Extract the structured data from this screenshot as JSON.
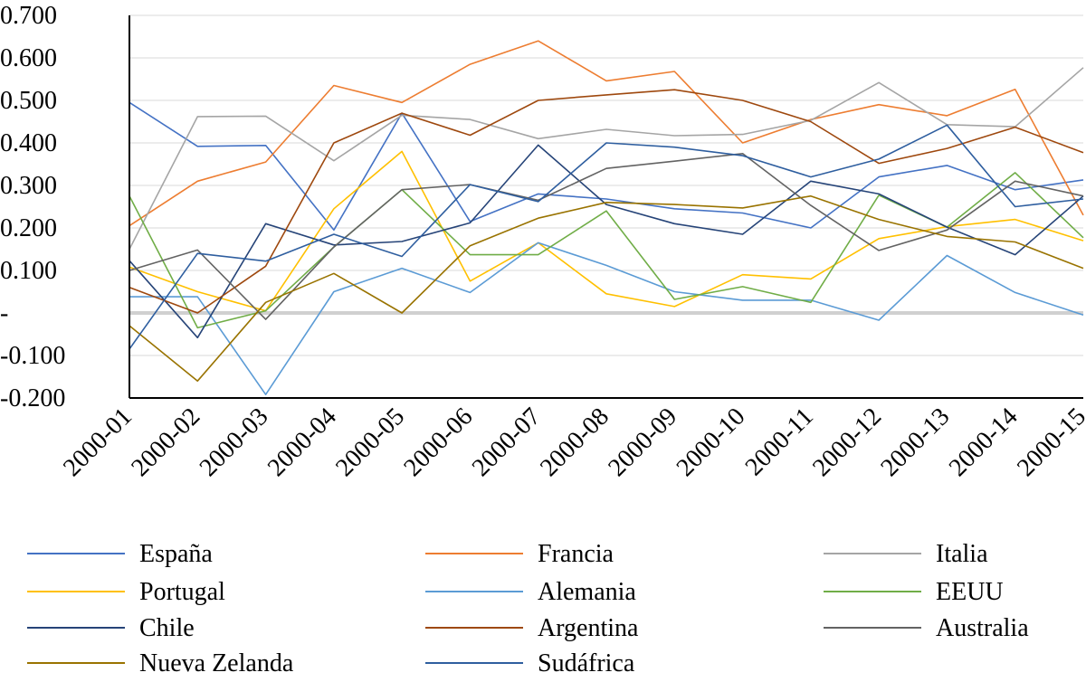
{
  "chart_data": {
    "type": "line",
    "title": "",
    "xlabel": "",
    "ylabel": "",
    "ylim": [
      -0.2,
      0.7
    ],
    "y_ticks": [
      -0.2,
      -0.1,
      0,
      0.1,
      0.2,
      0.3,
      0.4,
      0.5,
      0.6,
      0.7
    ],
    "y_tick_labels": [
      "-0.200",
      "-0.100",
      "-",
      "0.100",
      "0.200",
      "0.300",
      "0.400",
      "0.500",
      "0.600",
      "0.700"
    ],
    "grid": true,
    "legend_position": "bottom",
    "categories": [
      "2000-01",
      "2000-02",
      "2000-03",
      "2000-04",
      "2000-05",
      "2000-06",
      "2000-07",
      "2000-08",
      "2000-09",
      "2000-10",
      "2000-11",
      "2000-12",
      "2000-13",
      "2000-14",
      "2000-15"
    ],
    "series": [
      {
        "name": "España",
        "color": "#4472C4",
        "values": [
          0.495,
          0.392,
          0.394,
          0.195,
          0.47,
          0.215,
          0.28,
          0.268,
          0.245,
          0.235,
          0.2,
          0.32,
          0.347,
          0.29,
          0.313
        ]
      },
      {
        "name": "Francia",
        "color": "#ED7D31",
        "values": [
          0.205,
          0.31,
          0.355,
          0.535,
          0.495,
          0.585,
          0.64,
          0.546,
          0.568,
          0.4,
          0.455,
          0.49,
          0.464,
          0.526,
          0.23
        ]
      },
      {
        "name": "Italia",
        "color": "#A5A5A5",
        "values": [
          0.15,
          0.462,
          0.463,
          0.358,
          0.465,
          0.455,
          0.41,
          0.432,
          0.417,
          0.42,
          0.453,
          0.542,
          0.443,
          0.438,
          0.577
        ]
      },
      {
        "name": "Portugal",
        "color": "#FFC000",
        "values": [
          0.108,
          0.05,
          0.005,
          0.245,
          0.38,
          0.075,
          0.165,
          0.045,
          0.015,
          0.09,
          0.08,
          0.175,
          0.203,
          0.22,
          0.17
        ]
      },
      {
        "name": "Alemania",
        "color": "#5B9BD5",
        "values": [
          0.038,
          0.038,
          -0.192,
          0.05,
          0.105,
          0.048,
          0.165,
          0.112,
          0.05,
          0.03,
          0.03,
          -0.017,
          0.135,
          0.048,
          -0.005
        ]
      },
      {
        "name": "EEUU",
        "color": "#70AD47",
        "values": [
          0.275,
          -0.035,
          0.005,
          0.155,
          0.29,
          0.137,
          0.137,
          0.24,
          0.032,
          0.062,
          0.025,
          0.277,
          0.202,
          0.33,
          0.177
        ]
      },
      {
        "name": "Chile",
        "color": "#264478",
        "values": [
          0.123,
          -0.058,
          0.21,
          0.16,
          0.168,
          0.212,
          0.395,
          0.255,
          0.21,
          0.185,
          0.31,
          0.28,
          0.202,
          0.137,
          0.275
        ]
      },
      {
        "name": "Argentina",
        "color": "#9E480E",
        "values": [
          0.06,
          0.0,
          0.11,
          0.4,
          0.47,
          0.418,
          0.5,
          0.513,
          0.525,
          0.5,
          0.45,
          0.352,
          0.387,
          0.437,
          0.377
        ]
      },
      {
        "name": "Australia",
        "color": "#636363",
        "values": [
          0.1,
          0.148,
          -0.015,
          0.155,
          0.29,
          0.302,
          0.265,
          0.34,
          0.357,
          0.375,
          0.253,
          0.147,
          0.195,
          0.31,
          0.275
        ]
      },
      {
        "name": "Nueva Zelanda",
        "color": "#997300",
        "values": [
          -0.03,
          -0.16,
          0.025,
          0.093,
          0.0,
          0.158,
          0.223,
          0.26,
          0.255,
          0.247,
          0.275,
          0.22,
          0.18,
          0.167,
          0.105
        ]
      },
      {
        "name": "Sudáfrica",
        "color": "#2E5E9F",
        "values": [
          -0.085,
          0.14,
          0.122,
          0.185,
          0.133,
          0.302,
          0.262,
          0.4,
          0.39,
          0.37,
          0.32,
          0.362,
          0.442,
          0.25,
          0.268
        ]
      }
    ]
  }
}
